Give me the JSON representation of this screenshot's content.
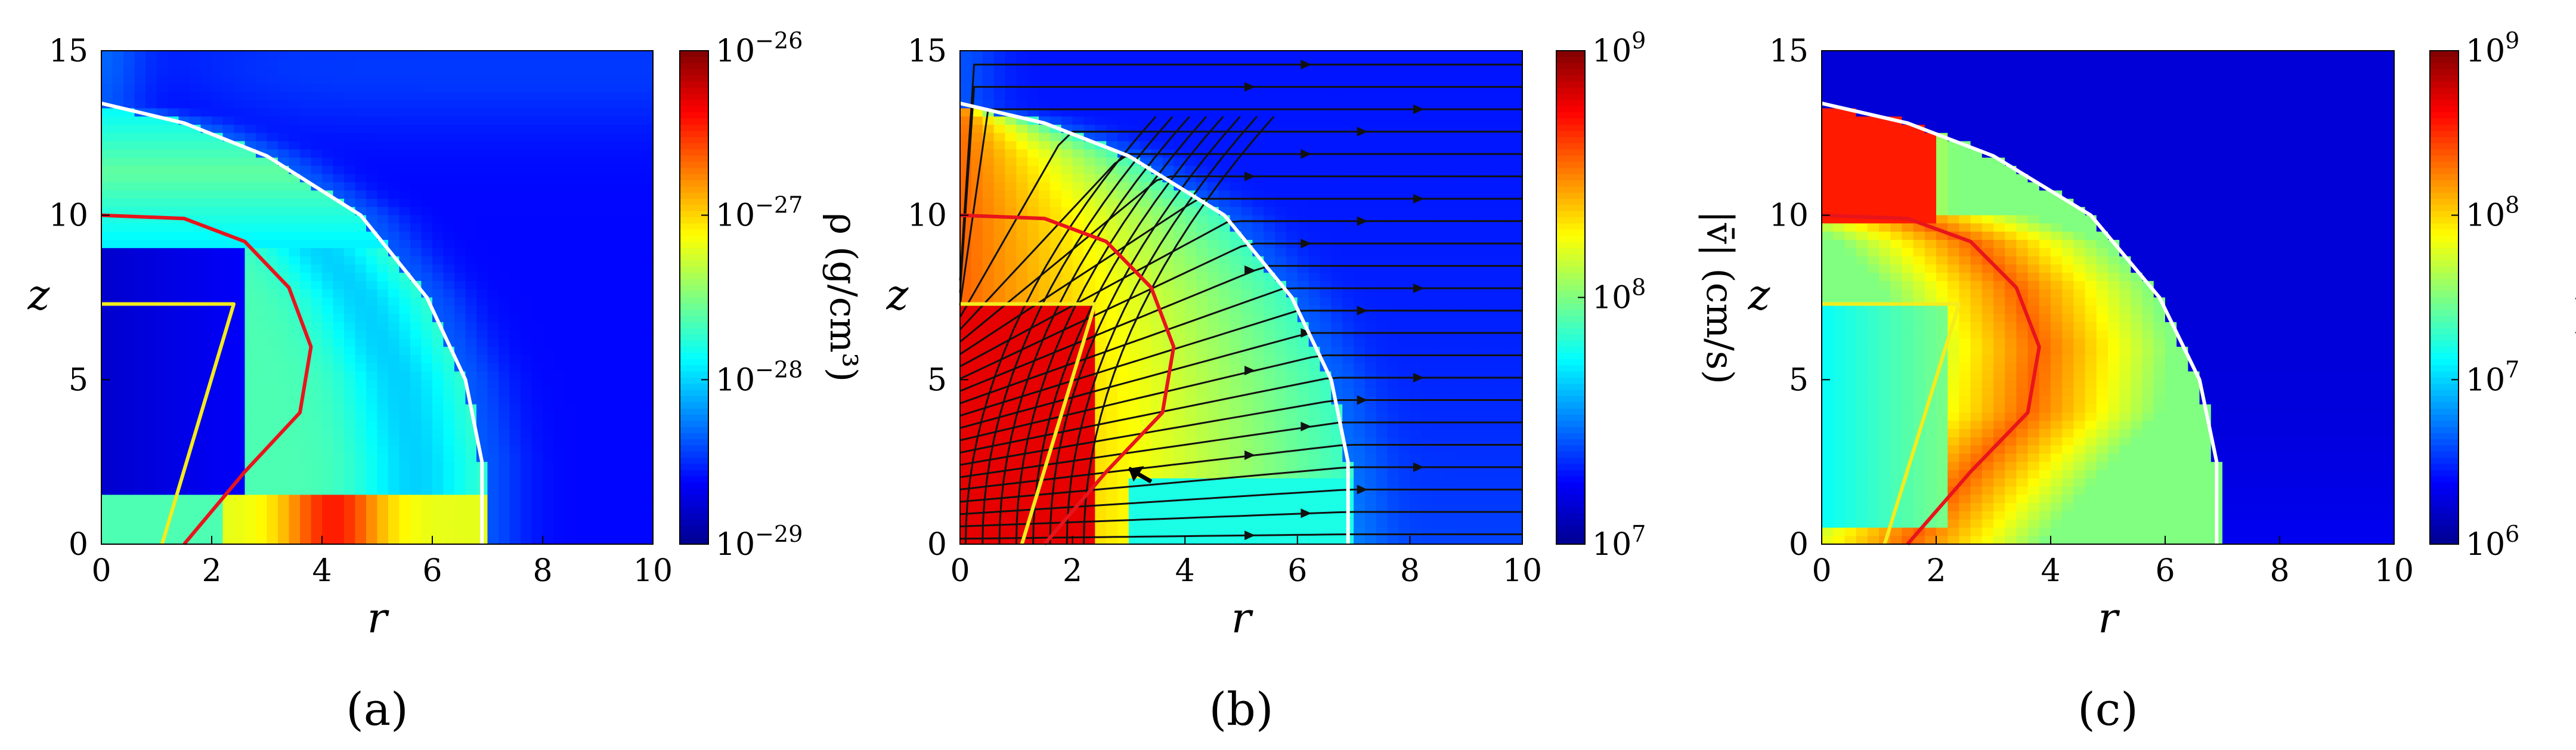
{
  "chart_data": [
    {
      "type": "heatmap",
      "panel_label": "(a)",
      "quantity": "density",
      "xlabel": "r",
      "ylabel": "z",
      "xlim": [
        0,
        10
      ],
      "ylim": [
        0,
        15
      ],
      "xticks": [
        "0",
        "2",
        "4",
        "6",
        "8",
        "10"
      ],
      "yticks": [
        "0",
        "5",
        "10",
        "15"
      ],
      "colorbar": {
        "label": "ρ (g/cm³)",
        "scale": "log",
        "range": [
          1e-29,
          1e-26
        ],
        "ticks": [
          {
            "base": "10",
            "exp": "−29"
          },
          {
            "base": "10",
            "exp": "−28"
          },
          {
            "base": "10",
            "exp": "−27"
          },
          {
            "base": "10",
            "exp": "−26"
          }
        ]
      },
      "curves": {
        "white": [
          [
            6.9,
            0
          ],
          [
            6.9,
            2.5
          ],
          [
            6.6,
            5
          ],
          [
            5.9,
            7.5
          ],
          [
            4.7,
            10
          ],
          [
            3.0,
            11.8
          ],
          [
            1.5,
            12.8
          ],
          [
            0,
            13.4
          ]
        ],
        "red": [
          [
            1.5,
            0
          ],
          [
            2.6,
            2.2
          ],
          [
            3.6,
            4
          ],
          [
            3.8,
            6
          ],
          [
            3.4,
            7.8
          ],
          [
            2.6,
            9.2
          ],
          [
            1.5,
            9.9
          ],
          [
            0,
            10
          ]
        ],
        "yellow": [
          [
            1.1,
            0
          ],
          [
            2.4,
            7.3
          ],
          [
            0,
            7.3
          ]
        ]
      }
    },
    {
      "type": "heatmap",
      "panel_label": "(b)",
      "quantity": "velocity magnitude with streamlines",
      "xlabel": "r",
      "ylabel": "z",
      "xlim": [
        0,
        10
      ],
      "ylim": [
        0,
        15
      ],
      "xticks": [
        "0",
        "2",
        "4",
        "6",
        "8",
        "10"
      ],
      "yticks": [
        "0",
        "5",
        "10",
        "15"
      ],
      "colorbar": {
        "label": "|v̄| (cm/s)",
        "scale": "log",
        "range": [
          10000000.0,
          1000000000.0
        ],
        "ticks": [
          {
            "base": "10",
            "exp": "7"
          },
          {
            "base": "10",
            "exp": "8"
          },
          {
            "base": "10",
            "exp": "9"
          }
        ]
      },
      "curves": {
        "white": [
          [
            6.9,
            0
          ],
          [
            6.9,
            2.5
          ],
          [
            6.6,
            5
          ],
          [
            5.9,
            7.5
          ],
          [
            4.7,
            10
          ],
          [
            3.0,
            11.8
          ],
          [
            1.5,
            12.8
          ],
          [
            0,
            13.4
          ]
        ],
        "red": [
          [
            1.5,
            0
          ],
          [
            2.6,
            2.2
          ],
          [
            3.6,
            4
          ],
          [
            3.8,
            6
          ],
          [
            3.4,
            7.8
          ],
          [
            2.6,
            9.2
          ],
          [
            1.5,
            9.9
          ],
          [
            0,
            10
          ]
        ],
        "yellow": [
          [
            1.1,
            0
          ],
          [
            2.4,
            7.3
          ],
          [
            0,
            7.3
          ]
        ]
      },
      "arrow_annotation": {
        "from": [
          3.4,
          1.9
        ],
        "to": [
          3.0,
          2.3
        ]
      }
    },
    {
      "type": "heatmap",
      "panel_label": "(c)",
      "quantity": "temperature",
      "xlabel": "r",
      "ylabel": "z",
      "xlim": [
        0,
        10
      ],
      "ylim": [
        0,
        15
      ],
      "xticks": [
        "0",
        "2",
        "4",
        "6",
        "8",
        "10"
      ],
      "yticks": [
        "0",
        "5",
        "10",
        "15"
      ],
      "colorbar": {
        "label": "T (K)",
        "scale": "log",
        "range": [
          1000000.0,
          1000000000.0
        ],
        "ticks": [
          {
            "base": "10",
            "exp": "6"
          },
          {
            "base": "10",
            "exp": "7"
          },
          {
            "base": "10",
            "exp": "8"
          },
          {
            "base": "10",
            "exp": "9"
          }
        ]
      },
      "curves": {
        "white": [
          [
            6.9,
            0
          ],
          [
            6.9,
            2.5
          ],
          [
            6.6,
            5
          ],
          [
            5.9,
            7.5
          ],
          [
            4.7,
            10
          ],
          [
            3.0,
            11.8
          ],
          [
            1.5,
            12.8
          ],
          [
            0,
            13.4
          ]
        ],
        "red": [
          [
            1.5,
            0
          ],
          [
            2.6,
            2.2
          ],
          [
            3.6,
            4
          ],
          [
            3.8,
            6
          ],
          [
            3.4,
            7.8
          ],
          [
            2.6,
            9.2
          ],
          [
            1.5,
            9.9
          ],
          [
            0,
            10
          ]
        ],
        "yellow": [
          [
            1.1,
            0
          ],
          [
            2.4,
            7.3
          ],
          [
            0,
            7.3
          ]
        ]
      }
    }
  ],
  "colors": {
    "white_curve": "#ffffff",
    "red_curve": "#e8141c",
    "yellow_curve": "#f4ec1c",
    "streamline": "#111111",
    "jet": [
      "#00008f",
      "#0000ff",
      "#0080ff",
      "#00ffff",
      "#80ff80",
      "#ffff00",
      "#ff8000",
      "#ff0000",
      "#800000"
    ]
  }
}
